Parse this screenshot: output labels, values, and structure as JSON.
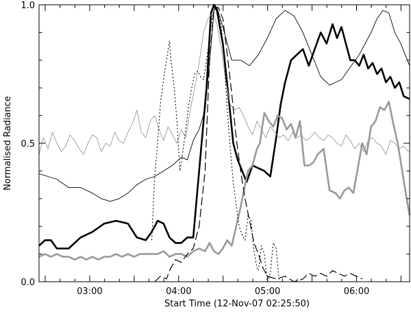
{
  "chart_data": {
    "type": "line",
    "title": "",
    "xlabel": "Start Time (12-Nov-07 02:25:50)",
    "ylabel": "Normalised Radiance",
    "x_unit": "minutes after 02:25:50",
    "xlim": [
      0,
      250
    ],
    "ylim": [
      0.0,
      1.0
    ],
    "x_ticks": [
      {
        "value": 34.17,
        "label": "03:00"
      },
      {
        "value": 94.17,
        "label": "04:00"
      },
      {
        "value": 154.17,
        "label": "05:00"
      },
      {
        "value": 214.17,
        "label": "06:00"
      }
    ],
    "y_ticks": [
      {
        "value": 0.0,
        "label": "0.0"
      },
      {
        "value": 0.5,
        "label": "0.5"
      },
      {
        "value": 1.0,
        "label": "1.0"
      }
    ],
    "grid": false,
    "series": [
      {
        "color": "#000000",
        "width": 2.6,
        "dash": "",
        "x": [
          0,
          4,
          8,
          12,
          20,
          28,
          36,
          44,
          52,
          60,
          66,
          72,
          76,
          80,
          84,
          88,
          92,
          96,
          100,
          104,
          108,
          113,
          116,
          118,
          120,
          124,
          128,
          131,
          134,
          137,
          140,
          144,
          148,
          152,
          156,
          160,
          163,
          166,
          170,
          174,
          178,
          182,
          186,
          190,
          194,
          198,
          201,
          204,
          207,
          210,
          213,
          216,
          219,
          222,
          225,
          228,
          231,
          234,
          237,
          240,
          243,
          246,
          250
        ],
        "y": [
          0.13,
          0.15,
          0.15,
          0.12,
          0.12,
          0.16,
          0.18,
          0.21,
          0.22,
          0.21,
          0.16,
          0.15,
          0.18,
          0.22,
          0.21,
          0.16,
          0.14,
          0.14,
          0.16,
          0.16,
          0.4,
          0.7,
          0.97,
          1.0,
          0.98,
          0.86,
          0.66,
          0.5,
          0.44,
          0.4,
          0.36,
          0.42,
          0.41,
          0.4,
          0.38,
          0.52,
          0.64,
          0.72,
          0.8,
          0.82,
          0.84,
          0.78,
          0.84,
          0.9,
          0.86,
          0.93,
          0.88,
          0.92,
          0.86,
          0.8,
          0.8,
          0.78,
          0.82,
          0.77,
          0.79,
          0.75,
          0.77,
          0.72,
          0.74,
          0.7,
          0.72,
          0.67,
          0.66
        ]
      },
      {
        "color": "#999999",
        "width": 2.6,
        "dash": "",
        "x": [
          0,
          4,
          8,
          12,
          16,
          20,
          24,
          28,
          32,
          36,
          40,
          44,
          48,
          52,
          56,
          60,
          64,
          68,
          72,
          76,
          80,
          84,
          88,
          92,
          96,
          100,
          104,
          108,
          112,
          115,
          118,
          121,
          124,
          127,
          130,
          133,
          136,
          139,
          141,
          144,
          147,
          149,
          152,
          155,
          158,
          161,
          164,
          167,
          170,
          173,
          176,
          179,
          182,
          185,
          188,
          192,
          196,
          200,
          203,
          206,
          209,
          212,
          215,
          218,
          221,
          224,
          227,
          230,
          233,
          236,
          239,
          242,
          245,
          248,
          250
        ],
        "y": [
          0.09,
          0.1,
          0.09,
          0.1,
          0.09,
          0.09,
          0.08,
          0.09,
          0.08,
          0.09,
          0.08,
          0.09,
          0.09,
          0.1,
          0.09,
          0.1,
          0.09,
          0.1,
          0.1,
          0.1,
          0.1,
          0.11,
          0.09,
          0.1,
          0.1,
          0.09,
          0.11,
          0.12,
          0.11,
          0.14,
          0.11,
          0.1,
          0.12,
          0.15,
          0.13,
          0.2,
          0.27,
          0.35,
          0.4,
          0.42,
          0.48,
          0.5,
          0.61,
          0.58,
          0.56,
          0.6,
          0.59,
          0.55,
          0.57,
          0.52,
          0.58,
          0.42,
          0.42,
          0.43,
          0.46,
          0.48,
          0.33,
          0.32,
          0.3,
          0.33,
          0.34,
          0.32,
          0.41,
          0.5,
          0.46,
          0.56,
          0.58,
          0.63,
          0.62,
          0.65,
          0.57,
          0.5,
          0.4,
          0.3,
          0.24
        ]
      },
      {
        "color": "#000000",
        "width": 0.9,
        "dash": "",
        "x": [
          0,
          6,
          12,
          20,
          28,
          36,
          42,
          48,
          54,
          60,
          66,
          72,
          78,
          84,
          90,
          96,
          100,
          104,
          108,
          112,
          116,
          118,
          120,
          124,
          130,
          136,
          142,
          148,
          154,
          160,
          166,
          172,
          178,
          184,
          190,
          196,
          200,
          204,
          208,
          212,
          216,
          220,
          224,
          228,
          232,
          236,
          240,
          244,
          250
        ],
        "y": [
          0.39,
          0.38,
          0.37,
          0.34,
          0.34,
          0.32,
          0.3,
          0.29,
          0.3,
          0.32,
          0.35,
          0.37,
          0.38,
          0.4,
          0.42,
          0.45,
          0.44,
          0.51,
          0.55,
          0.62,
          0.85,
          0.98,
          0.99,
          0.92,
          0.8,
          0.8,
          0.78,
          0.82,
          0.88,
          0.95,
          0.98,
          0.96,
          0.9,
          0.82,
          0.74,
          0.71,
          0.72,
          0.73,
          0.76,
          0.79,
          0.82,
          0.86,
          0.9,
          0.95,
          0.98,
          0.97,
          0.9,
          0.86,
          0.78
        ]
      },
      {
        "color": "#999999",
        "width": 0.9,
        "dash": "",
        "x": [
          0,
          3,
          6,
          9,
          12,
          15,
          18,
          21,
          24,
          27,
          30,
          33,
          36,
          39,
          42,
          45,
          48,
          51,
          54,
          57,
          60,
          63,
          66,
          69,
          72,
          75,
          78,
          81,
          84,
          87,
          90,
          93,
          96,
          99,
          102,
          105,
          108,
          111,
          114,
          117,
          120,
          123,
          126,
          129,
          132,
          135,
          138,
          141,
          144,
          147,
          150,
          153,
          156,
          159,
          162,
          165,
          168,
          171,
          174,
          177,
          180,
          183,
          186,
          189,
          192,
          195,
          198,
          201,
          204,
          207,
          210,
          213,
          216,
          219,
          222,
          225,
          228,
          231,
          234,
          237,
          240,
          243,
          246,
          249,
          250
        ],
        "y": [
          0.46,
          0.52,
          0.48,
          0.54,
          0.5,
          0.47,
          0.49,
          0.53,
          0.51,
          0.48,
          0.46,
          0.5,
          0.53,
          0.52,
          0.47,
          0.5,
          0.49,
          0.54,
          0.51,
          0.5,
          0.54,
          0.57,
          0.62,
          0.54,
          0.52,
          0.58,
          0.6,
          0.55,
          0.51,
          0.56,
          0.53,
          0.5,
          0.55,
          0.52,
          0.62,
          0.7,
          0.79,
          0.9,
          0.95,
          0.97,
          0.93,
          0.84,
          0.72,
          0.64,
          0.62,
          0.63,
          0.6,
          0.56,
          0.53,
          0.58,
          0.55,
          0.52,
          0.56,
          0.54,
          0.52,
          0.53,
          0.51,
          0.54,
          0.52,
          0.53,
          0.51,
          0.52,
          0.54,
          0.52,
          0.51,
          0.53,
          0.52,
          0.5,
          0.49,
          0.53,
          0.51,
          0.48,
          0.5,
          0.47,
          0.51,
          0.52,
          0.5,
          0.49,
          0.46,
          0.51,
          0.5,
          0.48,
          0.49,
          0.47,
          0.47
        ]
      },
      {
        "color": "#000000",
        "width": 1.1,
        "dash": "2,3",
        "x": [
          76,
          78,
          80,
          82,
          84,
          86,
          88,
          89,
          91,
          93,
          95,
          97,
          99,
          101,
          103,
          105,
          107,
          109,
          111,
          113,
          115,
          117,
          119,
          121,
          123,
          125,
          127,
          129,
          131,
          133,
          135,
          137,
          139,
          141,
          143,
          145,
          147,
          148,
          150,
          152,
          154,
          156,
          158,
          160,
          162
        ],
        "y": [
          0.15,
          0.38,
          0.5,
          0.65,
          0.73,
          0.8,
          0.87,
          0.8,
          0.71,
          0.58,
          0.4,
          0.47,
          0.55,
          0.64,
          0.7,
          0.75,
          0.76,
          0.74,
          0.73,
          0.8,
          0.88,
          0.96,
          1.0,
          0.97,
          0.92,
          0.8,
          0.62,
          0.48,
          0.36,
          0.28,
          0.2,
          0.17,
          0.15,
          0.24,
          0.22,
          0.11,
          0.05,
          0.04,
          0.13,
          0.1,
          0.0,
          0.03,
          0.14,
          0.12,
          0.0
        ]
      },
      {
        "color": "#000000",
        "width": 1.2,
        "dash": "12,5",
        "x": [
          78,
          82,
          86,
          88,
          92,
          96,
          100,
          104,
          108,
          112,
          115,
          118,
          121,
          124,
          127,
          130,
          133,
          136,
          139,
          142,
          145,
          148,
          151,
          154,
          160,
          166,
          172,
          178,
          182,
          186,
          190,
          194,
          198,
          202,
          206,
          210,
          214,
          218
        ],
        "y": [
          0.0,
          0.02,
          0.01,
          0.04,
          0.08,
          0.07,
          0.1,
          0.12,
          0.2,
          0.4,
          0.8,
          0.99,
          0.99,
          0.95,
          0.82,
          0.68,
          0.52,
          0.4,
          0.3,
          0.22,
          0.14,
          0.1,
          0.05,
          0.02,
          0.01,
          0.02,
          0.0,
          0.01,
          0.03,
          0.02,
          0.03,
          0.02,
          0.04,
          0.03,
          0.02,
          0.03,
          0.02,
          0.01
        ]
      }
    ]
  }
}
